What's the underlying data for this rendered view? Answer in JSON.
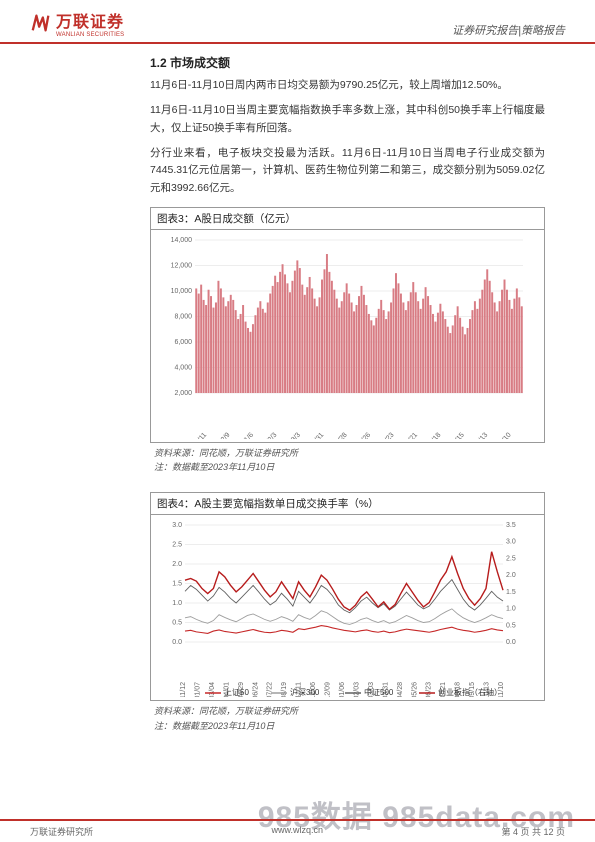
{
  "header": {
    "logo_cn": "万联证券",
    "logo_en": "WANLIAN SECURITIES",
    "right": "证券研究报告|策略报告"
  },
  "section": {
    "title": "1.2  市场成交额",
    "p1": "11月6日-11月10日周内两市日均交易额为9790.25亿元，较上周增加12.50%。",
    "p2": "11月6日-11月10日当周主要宽幅指数换手率多数上涨，其中科创50换手率上行幅度最大，仅上证50换手率有所回落。",
    "p3": "分行业来看，电子板块交投最为活跃。11月6日-11月10日当周电子行业成交额为7445.31亿元位居第一，计算机、医药生物位列第二和第三，成交额分别为5059.02亿元和3992.66亿元。"
  },
  "chart3": {
    "title": "图表3：A股日成交额（亿元）",
    "source1": "资料来源：同花顺，万联证券研究所",
    "source2": "注：数据截至2023年11月10日",
    "ylim": [
      2000,
      14000
    ],
    "ytick_step": 2000,
    "bar_color": "#d87c84",
    "grid_color": "#dcdcdc",
    "xlabels": [
      "2022/11/11",
      "2022/12/9",
      "2023/1/6",
      "2023/2/3",
      "2023/3/3",
      "2023/3/31",
      "2023/4/28",
      "2023/5/26",
      "2023/6/23",
      "2023/7/21",
      "2023/8/18",
      "2023/9/15",
      "2023/10/13",
      "2023/11/10"
    ],
    "values": [
      10200,
      9800,
      10500,
      9300,
      8900,
      10100,
      9600,
      8700,
      9100,
      10800,
      10200,
      9500,
      8800,
      9200,
      9700,
      9300,
      8500,
      7800,
      8200,
      8900,
      7600,
      7100,
      6800,
      7400,
      8100,
      8700,
      9200,
      8600,
      8300,
      9100,
      9800,
      10400,
      11200,
      10700,
      11500,
      12100,
      11300,
      10600,
      9900,
      10800,
      11600,
      12400,
      11800,
      10500,
      9700,
      10300,
      11100,
      10200,
      9400,
      8800,
      9500,
      10900,
      11700,
      12900,
      11500,
      10800,
      10100,
      9400,
      8700,
      9200,
      9900,
      10600,
      9800,
      9100,
      8400,
      8900,
      9600,
      10400,
      9700,
      8900,
      8200,
      7700,
      7300,
      7900,
      8600,
      9300,
      8500,
      7800,
      8400,
      9100,
      10200,
      11400,
      10600,
      9800,
      9100,
      8500,
      9200,
      9900,
      10700,
      9900,
      9200,
      8600,
      9400,
      10300,
      9600,
      8900,
      8200,
      7600,
      8300,
      9000,
      8400,
      7800,
      7200,
      6700,
      7300,
      8100,
      8800,
      7900,
      7200,
      6600,
      7100,
      7800,
      8500,
      9200,
      8600,
      9400,
      10100,
      10900,
      11700,
      10800,
      9900,
      9100,
      8400,
      9200,
      10100,
      10900,
      10100,
      9300,
      8600,
      9400,
      10200,
      9500,
      8800
    ]
  },
  "chart4": {
    "title": "图表4：A股主要宽幅指数单日成交换手率（%）",
    "source1": "资料来源：同花顺，万联证券研究所",
    "source2": "注：数据截至2023年11月10日",
    "ylim_left": [
      0.0,
      3.0
    ],
    "ytick_left": 0.5,
    "ylim_right": [
      0.0,
      3.5
    ],
    "ytick_right": 0.5,
    "grid_color": "#dcdcdc",
    "legend": {
      "sz50": {
        "label": "上证50",
        "color": "#c62828"
      },
      "hs300": {
        "label": "沪深300",
        "color": "#9e9e9e"
      },
      "zz500": {
        "label": "中证500",
        "color": "#616161"
      },
      "cyb": {
        "label": "创业板指（右轴）",
        "color": "#b71c1c"
      }
    },
    "xlabels": [
      "2021/11/12",
      "2022/01/07",
      "2022/03/04",
      "2022/04/01",
      "2022/04/29",
      "2022/06/24",
      "2022/07/22",
      "2022/08/19",
      "2022/11/11",
      "2022/12/06",
      "2022/12/09",
      "2023/01/06",
      "2023/02/03",
      "2023/03/03",
      "2023/03/31",
      "2023/04/28",
      "2023/05/26",
      "2023/06/23",
      "2023/07/21",
      "2023/08/18",
      "2023/09/15",
      "2023/10/13",
      "2023/11/10"
    ],
    "series": {
      "sz50": [
        0.28,
        0.3,
        0.26,
        0.24,
        0.22,
        0.28,
        0.31,
        0.27,
        0.25,
        0.23,
        0.26,
        0.29,
        0.32,
        0.28,
        0.25,
        0.24,
        0.26,
        0.3,
        0.28,
        0.25,
        0.34,
        0.32,
        0.35,
        0.38,
        0.42,
        0.4,
        0.36,
        0.33,
        0.3,
        0.28,
        0.26,
        0.29,
        0.31,
        0.27,
        0.25,
        0.28,
        0.24,
        0.26,
        0.3,
        0.33,
        0.31,
        0.29,
        0.27,
        0.25,
        0.28,
        0.32,
        0.35,
        0.38,
        0.33,
        0.3,
        0.28,
        0.25,
        0.27,
        0.3,
        0.34,
        0.31,
        0.29
      ],
      "hs300": [
        0.62,
        0.65,
        0.58,
        0.52,
        0.48,
        0.55,
        0.7,
        0.63,
        0.57,
        0.52,
        0.6,
        0.68,
        0.72,
        0.65,
        0.58,
        0.53,
        0.58,
        0.65,
        0.6,
        0.53,
        0.7,
        0.63,
        0.58,
        0.68,
        0.8,
        0.75,
        0.65,
        0.55,
        0.48,
        0.45,
        0.5,
        0.58,
        0.62,
        0.55,
        0.5,
        0.55,
        0.48,
        0.52,
        0.6,
        0.68,
        0.62,
        0.55,
        0.5,
        0.52,
        0.6,
        0.7,
        0.78,
        0.85,
        0.72,
        0.62,
        0.55,
        0.5,
        0.55,
        0.62,
        0.7,
        0.64,
        0.6
      ],
      "zz500": [
        1.3,
        1.45,
        1.35,
        1.2,
        1.05,
        1.18,
        1.4,
        1.28,
        1.12,
        1.0,
        1.15,
        1.3,
        1.45,
        1.28,
        1.1,
        0.95,
        1.05,
        1.25,
        1.1,
        0.92,
        1.3,
        1.15,
        1.0,
        1.2,
        1.45,
        1.35,
        1.18,
        0.95,
        0.82,
        0.75,
        0.88,
        1.05,
        1.15,
        1.0,
        0.88,
        0.98,
        0.82,
        0.92,
        1.1,
        1.28,
        1.12,
        0.95,
        0.85,
        0.92,
        1.1,
        1.3,
        1.45,
        1.6,
        1.35,
        1.1,
        0.92,
        0.82,
        0.95,
        1.12,
        1.3,
        1.15,
        1.05
      ],
      "cyb": [
        1.85,
        1.9,
        1.82,
        1.6,
        1.45,
        1.6,
        2.1,
        1.95,
        1.7,
        1.5,
        1.65,
        1.85,
        2.05,
        1.8,
        1.55,
        1.35,
        1.5,
        1.8,
        1.55,
        1.3,
        1.8,
        1.55,
        1.35,
        1.65,
        2.0,
        1.85,
        1.58,
        1.28,
        1.05,
        0.95,
        1.1,
        1.35,
        1.5,
        1.28,
        1.05,
        1.2,
        0.98,
        1.12,
        1.45,
        1.75,
        1.5,
        1.25,
        1.05,
        1.18,
        1.5,
        1.85,
        2.1,
        2.55,
        2.05,
        1.6,
        1.3,
        1.1,
        1.3,
        1.6,
        2.7,
        2.1,
        1.55
      ]
    }
  },
  "footer": {
    "left": "万联证券研究所",
    "mid": "www.wlzq.cn",
    "right": "第 4 页 共 12 页"
  },
  "watermark": "985数据  985data.com"
}
